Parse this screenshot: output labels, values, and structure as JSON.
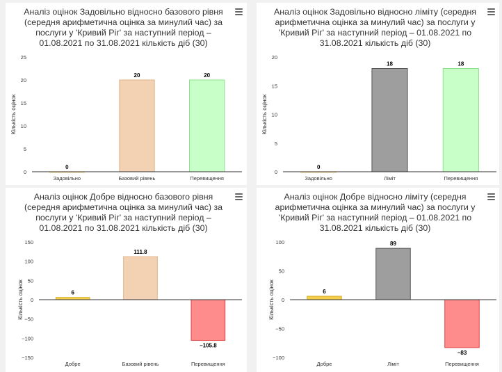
{
  "chart_data": [
    {
      "type": "bar",
      "title": "Аналіз оцінок Задовільно відносно базового рівня (середня арифметична оцінка за минулий час) за послуги у 'Кривий Ріг' за наступний період – 01.08.2021 по 31.08.2021 кількість діб (30)",
      "categories": [
        "Задовільно",
        "Базовий рівень",
        "Перевищення"
      ],
      "values": [
        0,
        20,
        20
      ],
      "data_labels": [
        "0",
        "20",
        "20"
      ],
      "colors": [
        "#f5cf47",
        "#f2d2b3",
        "#c8ffc8"
      ],
      "border_colors": [
        "#d9b030",
        "#deb489",
        "#8de08d"
      ],
      "ylabel": "Кількість оцінок",
      "ylim": [
        0,
        25
      ],
      "yticks": [
        0,
        5,
        10,
        15,
        20,
        25
      ],
      "grid": false
    },
    {
      "type": "bar",
      "title": "Аналіз оцінок Задовільно відносно ліміту (середня арифметична оцінка за минулий час) за послуги у 'Кривий Ріг' за наступний період – 01.08.2021 по 31.08.2021 кількість діб (30)",
      "categories": [
        "Задовільно",
        "Ліміт",
        "Перевищення"
      ],
      "values": [
        0,
        18,
        18
      ],
      "data_labels": [
        "0",
        "18",
        "18"
      ],
      "colors": [
        "#f5cf47",
        "#9e9e9e",
        "#c8ffc8"
      ],
      "border_colors": [
        "#d9b030",
        "#555555",
        "#8de08d"
      ],
      "ylabel": "Кількість оцінок",
      "ylim": [
        0,
        20
      ],
      "yticks": [
        0,
        5,
        10,
        15,
        20
      ],
      "grid": false
    },
    {
      "type": "bar",
      "title": "Аналіз оцінок Добре відносно базового рівня (середня арифметична оцінка за минулий час) за послуги у 'Кривий Ріг' за наступний період – 01.08.2021 по 31.08.2021 кількість діб (30)",
      "categories": [
        "Добре",
        "Базовий рівень",
        "Перевищення"
      ],
      "values": [
        6,
        111.8,
        -105.8
      ],
      "data_labels": [
        "6",
        "111.8",
        "−105.8"
      ],
      "colors": [
        "#f5cf47",
        "#f2d2b3",
        "#ff8c8c"
      ],
      "border_colors": [
        "#d9b030",
        "#deb489",
        "#e04040"
      ],
      "ylabel": "Кількість оцінок",
      "ylim": [
        -150,
        150
      ],
      "yticks": [
        -150,
        -100,
        -50,
        0,
        50,
        100,
        150
      ],
      "grid": false
    },
    {
      "type": "bar",
      "title": "Аналіз оцінок Добре відносно ліміту (середня арифметична оцінка за минулий час) за послуги у 'Кривий Ріг' за наступний період – 01.08.2021 по 31.08.2021 кількість діб (30)",
      "categories": [
        "Добре",
        "Ліміт",
        "Перевищення"
      ],
      "values": [
        6,
        89,
        -83
      ],
      "data_labels": [
        "6",
        "89",
        "−83"
      ],
      "colors": [
        "#f5cf47",
        "#9e9e9e",
        "#ff8c8c"
      ],
      "border_colors": [
        "#d9b030",
        "#555555",
        "#e04040"
      ],
      "ylabel": "Кількість оцінок",
      "ylim": [
        -100,
        100
      ],
      "yticks": [
        -100,
        -50,
        0,
        50,
        100
      ],
      "grid": false
    }
  ],
  "menu_icon": "hamburger-menu-icon"
}
